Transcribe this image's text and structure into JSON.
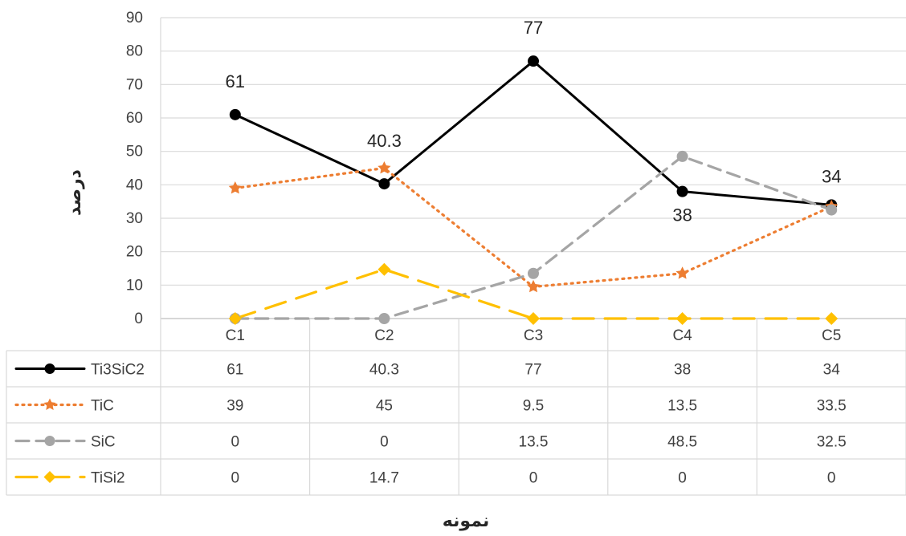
{
  "chart_data": {
    "type": "line",
    "title": "",
    "xlabel": "نمونه",
    "ylabel": "درصد",
    "ylim": [
      0,
      90
    ],
    "yticks": [
      0,
      10,
      20,
      30,
      40,
      50,
      60,
      70,
      80,
      90
    ],
    "grid": true,
    "legend": "data-table",
    "categories": [
      "C1",
      "C2",
      "C3",
      "C4",
      "C5"
    ],
    "series": [
      {
        "name": "Ti3SiC2",
        "values": [
          61,
          40.3,
          77,
          38,
          34
        ],
        "table_values": [
          "61",
          "40.3",
          "77",
          "38",
          "34"
        ],
        "color": "#000000",
        "style": "solid",
        "marker": "circle"
      },
      {
        "name": "TiC",
        "values": [
          39,
          45,
          9.5,
          13.5,
          33.5
        ],
        "table_values": [
          "39",
          "45",
          "9.5",
          "13.5",
          "33.5"
        ],
        "color": "#ED7D31",
        "style": "dotted",
        "marker": "star"
      },
      {
        "name": "SiC",
        "values": [
          0,
          0,
          13.5,
          48.5,
          32.5
        ],
        "table_values": [
          "0",
          "0",
          "13.5",
          "48.5",
          "32.5"
        ],
        "color": "#A5A5A5",
        "style": "dashed",
        "marker": "circle"
      },
      {
        "name": "TiSi2",
        "values": [
          0,
          14.7,
          0,
          0,
          0
        ],
        "table_values": [
          "0",
          "14.7",
          "0",
          "0",
          "0"
        ],
        "color": "#FFC000",
        "style": "longdash",
        "marker": "diamond"
      }
    ],
    "data_labels": [
      {
        "series": 0,
        "index": 0,
        "text": "61"
      },
      {
        "series": 0,
        "index": 1,
        "text": "40.3"
      },
      {
        "series": 0,
        "index": 2,
        "text": "77"
      },
      {
        "series": 0,
        "index": 3,
        "text": "38"
      },
      {
        "series": 0,
        "index": 4,
        "text": "34"
      }
    ]
  }
}
